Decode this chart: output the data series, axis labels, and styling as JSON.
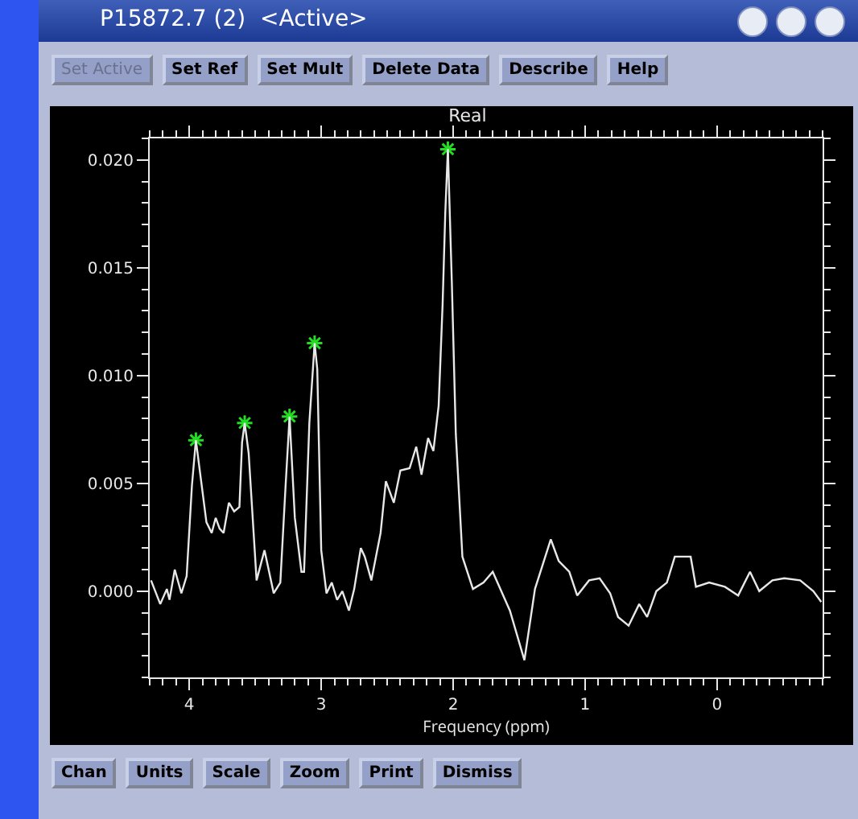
{
  "chart_data": {
    "type": "line",
    "title": "Real",
    "xlabel": "Frequency (ppm)",
    "annotations": [
      "P15872.7 (2)  <Active>",
      "Set Active",
      "Set Ref",
      "Set Mult",
      "Delete Data",
      "Describe",
      "Help",
      "Chan",
      "Units",
      "Scale",
      "Zoom",
      "Print",
      "Dismiss"
    ],
    "xlim": [
      4.3,
      -0.8
    ],
    "xticks": [
      4,
      3,
      2,
      1,
      0,
      {
        "value": 4.3,
        "label": null
      },
      {
        "value": 4.2,
        "label": null
      },
      {
        "value": 4.1,
        "label": null
      },
      {
        "value": 3.9,
        "label": null
      },
      {
        "value": 3.8,
        "label": null
      },
      {
        "value": 3.7,
        "label": null
      },
      {
        "value": 3.6,
        "label": null
      },
      {
        "value": 3.5,
        "label": null
      },
      {
        "value": 3.4,
        "label": null
      },
      {
        "value": 3.3,
        "label": null
      },
      {
        "value": 3.2,
        "label": null
      },
      {
        "value": 3.1,
        "label": null
      },
      {
        "value": 2.9,
        "label": null
      },
      {
        "value": 2.8,
        "label": null
      },
      {
        "value": 2.7,
        "label": null
      },
      {
        "value": 2.6,
        "label": null
      },
      {
        "value": 2.5,
        "label": null
      },
      {
        "value": 2.4,
        "label": null
      },
      {
        "value": 2.3,
        "label": null
      },
      {
        "value": 2.2,
        "label": null
      },
      {
        "value": 2.1,
        "label": null
      },
      {
        "value": 1.9,
        "label": null
      },
      {
        "value": 1.8,
        "label": null
      },
      {
        "value": 1.7,
        "label": null
      },
      {
        "value": 1.6,
        "label": null
      },
      {
        "value": 1.5,
        "label": null
      },
      {
        "value": 1.4,
        "label": null
      },
      {
        "value": 1.3,
        "label": null
      },
      {
        "value": 1.2,
        "label": null
      },
      {
        "value": 1.1,
        "label": null
      },
      {
        "value": 0.9,
        "label": null
      },
      {
        "value": 0.8,
        "label": null
      },
      {
        "value": 0.7,
        "label": null
      },
      {
        "value": 0.6,
        "label": null
      },
      {
        "value": 0.5,
        "label": null
      },
      {
        "value": 0.4,
        "label": null
      },
      {
        "value": 0.3,
        "label": null
      },
      {
        "value": 0.2,
        "label": null
      },
      {
        "value": 0.1,
        "label": null
      },
      {
        "value": -0.1,
        "label": null
      },
      {
        "value": -0.2,
        "label": null
      },
      {
        "value": -0.3,
        "label": null
      },
      {
        "value": -0.4,
        "label": null
      },
      {
        "value": -0.5,
        "label": null
      },
      {
        "value": -0.6,
        "label": null
      },
      {
        "value": -0.7,
        "label": null
      },
      {
        "value": -0.8,
        "label": null
      }
    ],
    "ylim": [
      -0.004,
      0.021
    ],
    "yticks": [
      {
        "value": 0,
        "label": "0.000"
      },
      {
        "value": 0.005,
        "label": "0.005"
      },
      {
        "value": 0.01,
        "label": "0.010"
      },
      {
        "value": 0.015,
        "label": "0.015"
      },
      {
        "value": 0.02,
        "label": "0.020"
      },
      {
        "value": -0.004,
        "label": null
      },
      {
        "value": -0.003,
        "label": null
      },
      {
        "value": -0.002,
        "label": null
      },
      {
        "value": -0.001,
        "label": null
      },
      {
        "value": 0.001,
        "label": null
      },
      {
        "value": 0.002,
        "label": null
      },
      {
        "value": 0.003,
        "label": null
      },
      {
        "value": 0.004,
        "label": null
      },
      {
        "value": 0.006,
        "label": null
      },
      {
        "value": 0.007,
        "label": null
      },
      {
        "value": 0.008,
        "label": null
      },
      {
        "value": 0.009,
        "label": null
      },
      {
        "value": 0.011,
        "label": null
      },
      {
        "value": 0.012,
        "label": null
      },
      {
        "value": 0.013,
        "label": null
      },
      {
        "value": 0.014,
        "label": null
      },
      {
        "value": 0.016,
        "label": null
      },
      {
        "value": 0.017,
        "label": null
      },
      {
        "value": 0.018,
        "label": null
      },
      {
        "value": 0.019,
        "label": null
      },
      {
        "value": 0.021,
        "label": null
      }
    ],
    "grid": false,
    "series": [
      {
        "color": "#e8e8e8",
        "marker": "none",
        "line_style": "solid",
        "x": [
          4.29,
          4.22,
          4.17,
          4.15,
          4.11,
          4.06,
          4.02,
          3.98,
          3.95,
          3.91,
          3.87,
          3.83,
          3.8,
          3.77,
          3.74,
          3.7,
          3.66,
          3.62,
          3.6,
          3.58,
          3.55,
          3.49,
          3.43,
          3.36,
          3.31,
          3.27,
          3.24,
          3.2,
          3.15,
          3.13,
          3.09,
          3.05,
          3.03,
          3.0,
          2.96,
          2.92,
          2.88,
          2.84,
          2.79,
          2.75,
          2.7,
          2.67,
          2.62,
          2.55,
          2.51,
          2.45,
          2.4,
          2.33,
          2.28,
          2.24,
          2.19,
          2.15,
          2.11,
          2.08,
          2.06,
          2.04,
          2.01,
          1.98,
          1.93,
          1.85,
          1.77,
          1.7,
          1.57,
          1.46,
          1.38,
          1.26,
          1.2,
          1.12,
          1.06,
          0.97,
          0.89,
          0.81,
          0.75,
          0.67,
          0.59,
          0.53,
          0.46,
          0.38,
          0.32,
          0.26,
          0.2,
          0.16,
          0.06,
          -0.06,
          -0.16,
          -0.25,
          -0.32,
          -0.42,
          -0.51,
          -0.63,
          -0.73,
          -0.79
        ],
        "values": [
          0.0005,
          -0.0006,
          0.0001,
          -0.0004,
          0.001,
          -0.0001,
          0.0007,
          0.0049,
          0.007,
          0.0051,
          0.0032,
          0.0027,
          0.0034,
          0.0029,
          0.0027,
          0.0041,
          0.0037,
          0.0039,
          0.0069,
          0.0078,
          0.0064,
          0.0005,
          0.0019,
          -0.0001,
          0.0004,
          0.0049,
          0.0081,
          0.0034,
          0.0009,
          0.0009,
          0.0078,
          0.0115,
          0.0103,
          0.0019,
          -0.0001,
          0.0004,
          -0.0004,
          0,
          -0.0009,
          0.0001,
          0.002,
          0.0016,
          0.0005,
          0.0027,
          0.0051,
          0.0041,
          0.0056,
          0.0057,
          0.0067,
          0.0054,
          0.0071,
          0.0065,
          0.0086,
          0.0133,
          0.0175,
          0.0205,
          0.0143,
          0.0073,
          0.0016,
          0.0001,
          0.0004,
          0.0009,
          -0.0009,
          -0.0032,
          0.0001,
          0.0024,
          0.0014,
          0.0009,
          -0.0002,
          0.0005,
          0.0006,
          -0.0001,
          -0.0012,
          -0.0016,
          -0.0006,
          -0.0012,
          0,
          0.0004,
          0.0016,
          0.0016,
          0.0016,
          0.0002,
          0.0004,
          0.0002,
          -0.0002,
          0.0009,
          0,
          0.0005,
          0.0006,
          0.0005,
          0,
          -0.0005
        ]
      },
      {
        "type": "scatter",
        "color": "#22dd22",
        "marker": "cross",
        "x": [
          3.95,
          3.58,
          3.24,
          3.05,
          2.04
        ],
        "values": [
          0.007,
          0.0078,
          0.0081,
          0.0115,
          0.0205
        ]
      }
    ]
  }
}
